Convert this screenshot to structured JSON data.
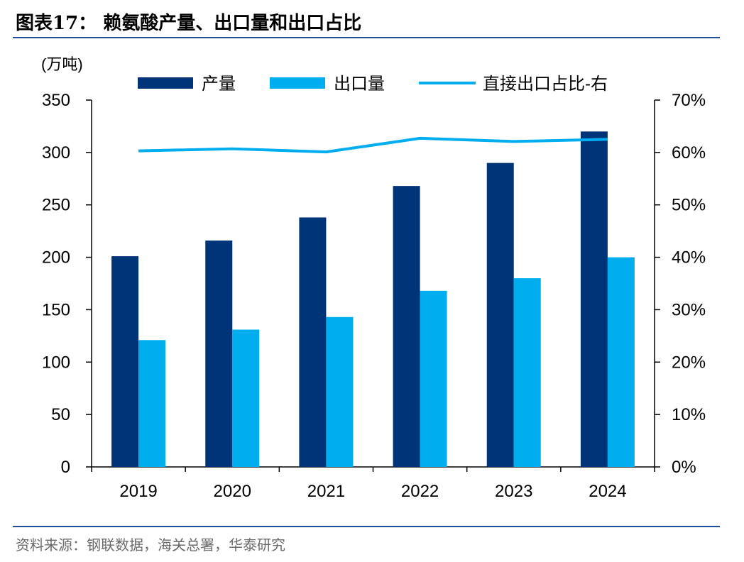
{
  "page": {
    "title": "图表17： 赖氨酸产量、出口量和出口占比",
    "source": "资料来源：钢联数据，海关总署，华泰研究"
  },
  "chart_data": {
    "type": "bar",
    "categories": [
      "2019",
      "2020",
      "2021",
      "2022",
      "2023",
      "2024"
    ],
    "series": [
      {
        "name": "产量",
        "type": "bar",
        "axis": "left",
        "color": "#003478",
        "values": [
          201,
          216,
          238,
          268,
          290,
          320
        ]
      },
      {
        "name": "出口量",
        "type": "bar",
        "axis": "left",
        "color": "#00aeef",
        "values": [
          121,
          131,
          143,
          168,
          180,
          200
        ]
      },
      {
        "name": "直接出口占比-右",
        "type": "line",
        "axis": "right",
        "color": "#00aeef",
        "values": [
          60.3,
          60.7,
          60.1,
          62.7,
          62.1,
          62.5
        ]
      }
    ],
    "ylabel": "(万吨)",
    "ylim": [
      0,
      350
    ],
    "y_ticks": [
      "0",
      "50",
      "100",
      "150",
      "200",
      "250",
      "300",
      "350"
    ],
    "y2lim": [
      0,
      70
    ],
    "y2_ticks": [
      "0%",
      "10%",
      "20%",
      "30%",
      "40%",
      "50%",
      "60%",
      "70%"
    ],
    "legend_position": "top",
    "grid": false
  }
}
